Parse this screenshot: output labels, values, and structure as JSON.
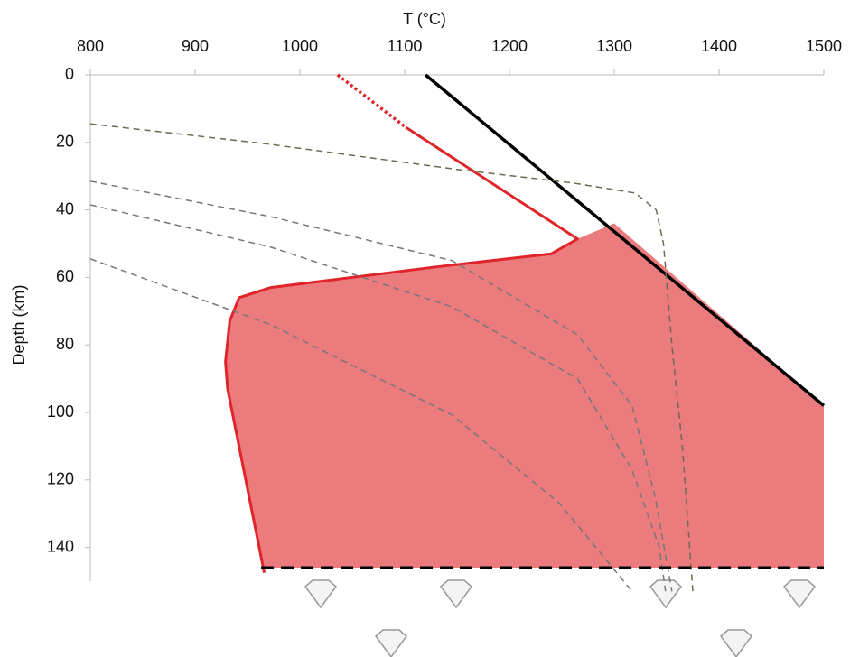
{
  "chart_data": {
    "type": "line",
    "x_label": "T (°C)",
    "y_label": "Depth (km)",
    "xlim": [
      800,
      1500
    ],
    "xticks": [
      800,
      900,
      1000,
      1100,
      1200,
      1300,
      1400,
      1500
    ],
    "ylim": [
      0,
      150
    ],
    "yticks": [
      0,
      20,
      40,
      60,
      80,
      100,
      120,
      140
    ],
    "y_inverted": true,
    "area": {
      "color": "#ec7b7d",
      "x": [
        1265,
        1240,
        1127,
        972,
        942,
        933,
        929,
        931,
        966,
        1500,
        1500,
        1300
      ],
      "values": [
        48.6,
        53,
        57,
        63,
        66,
        73,
        85,
        93,
        146,
        146,
        98,
        44
      ]
    },
    "series": [
      {
        "color": "#000000",
        "width": 3.5,
        "dash": "solid",
        "x": [
          1120,
          1500
        ],
        "values": [
          0,
          98
        ]
      },
      {
        "color": "#e0252a",
        "width": 3.5,
        "dash": "dot",
        "x": [
          1036,
          1101
        ],
        "values": [
          0,
          15.5
        ]
      },
      {
        "color": "#e0252a",
        "width": 3,
        "dash": "solid",
        "x": [
          1101,
          1265,
          1240,
          1127,
          972,
          942,
          933,
          929,
          931,
          966
        ],
        "values": [
          15.5,
          48.6,
          53,
          57,
          63,
          66,
          73,
          85,
          93,
          147.5
        ]
      },
      {
        "color": "#6b6b4f",
        "width": 1.5,
        "dash": "dash",
        "x": [
          800,
          970,
          1150,
          1260,
          1320,
          1340,
          1347,
          1355,
          1365,
          1375
        ],
        "values": [
          14.5,
          20.5,
          28,
          32,
          35,
          40,
          50,
          80,
          110,
          153
        ]
      },
      {
        "color": "#777777",
        "width": 1.5,
        "dash": "dash",
        "x": [
          800,
          972,
          1145,
          1265,
          1317,
          1339,
          1355
        ],
        "values": [
          31.5,
          42,
          55,
          77,
          98,
          125,
          153
        ]
      },
      {
        "color": "#777777",
        "width": 1.5,
        "dash": "dash",
        "x": [
          800,
          972,
          1145,
          1265,
          1317,
          1343,
          1349
        ],
        "values": [
          38.5,
          51,
          68.7,
          90,
          117,
          140,
          153
        ]
      },
      {
        "color": "#777777",
        "width": 1.5,
        "dash": "dash",
        "x": [
          800,
          972,
          1145,
          1248,
          1317
        ],
        "values": [
          54.5,
          74,
          100.7,
          127,
          153
        ]
      },
      {
        "color": "#000000",
        "width": 3,
        "dash": "longdash",
        "x": [
          963,
          1500
        ],
        "values": [
          146,
          146
        ]
      }
    ]
  }
}
